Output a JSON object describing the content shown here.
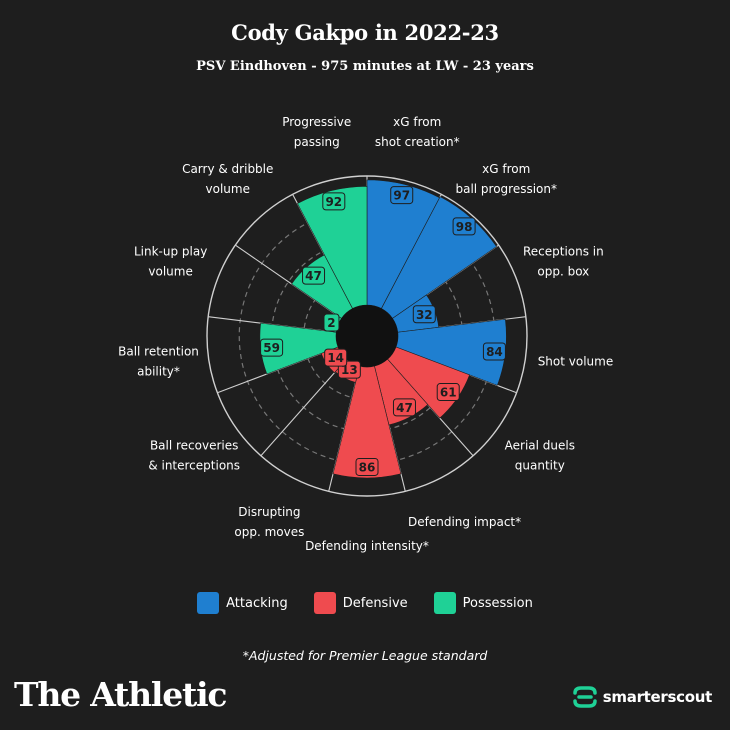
{
  "header": {
    "title": "Cody Gakpo in 2022-23",
    "subtitle": "PSV Eindhoven - 975 minutes at LW - 23 years"
  },
  "colors": {
    "attacking": "#1f7fd0",
    "defensive": "#ef4b4f",
    "possession": "#1fd196",
    "background": "#1e1e1e"
  },
  "chart_data": {
    "type": "polar-bar",
    "title": "Cody Gakpo in 2022-23",
    "subtitle": "PSV Eindhoven - 975 minutes at LW - 23 years",
    "rmax": 100,
    "segments": [
      {
        "label": "xG from shot creation*",
        "lines": [
          "xG from",
          "shot creation*"
        ],
        "value": 97,
        "category": "attacking"
      },
      {
        "label": "xG from ball progression*",
        "lines": [
          "xG from",
          "ball progression*"
        ],
        "value": 98,
        "category": "attacking"
      },
      {
        "label": "Receptions in opp. box",
        "lines": [
          "Receptions in",
          "opp. box"
        ],
        "value": 32,
        "category": "attacking"
      },
      {
        "label": "Shot volume",
        "lines": [
          "Shot volume"
        ],
        "value": 84,
        "category": "attacking"
      },
      {
        "label": "Aerial duels quantity",
        "lines": [
          "Aerial duels",
          "quantity"
        ],
        "value": 61,
        "category": "defensive"
      },
      {
        "label": "Defending impact*",
        "lines": [
          "Defending impact*"
        ],
        "value": 47,
        "category": "defensive"
      },
      {
        "label": "Defending intensity*",
        "lines": [
          "Defending intensity*"
        ],
        "value": 86,
        "category": "defensive"
      },
      {
        "label": "Disrupting opp. moves",
        "lines": [
          "Disrupting",
          "opp. moves"
        ],
        "value": 13,
        "category": "defensive"
      },
      {
        "label": "Ball recoveries & interceptions",
        "lines": [
          "Ball recoveries",
          "& interceptions"
        ],
        "value": 14,
        "category": "defensive"
      },
      {
        "label": "Ball retention ability*",
        "lines": [
          "Ball retention",
          "ability*"
        ],
        "value": 59,
        "category": "possession"
      },
      {
        "label": "Link-up play volume",
        "lines": [
          "Link-up play",
          "volume"
        ],
        "value": 2,
        "category": "possession"
      },
      {
        "label": "Carry & dribble volume",
        "lines": [
          "Carry & dribble",
          "volume"
        ],
        "value": 47,
        "category": "possession"
      },
      {
        "label": "Progressive passing",
        "lines": [
          "Progressive",
          "passing"
        ],
        "value": 92,
        "category": "possession"
      }
    ]
  },
  "legend": [
    {
      "label": "Attacking",
      "color": "#1f7fd0"
    },
    {
      "label": "Defensive",
      "color": "#ef4b4f"
    },
    {
      "label": "Possession",
      "color": "#1fd196"
    }
  ],
  "footnote": "*Adjusted for Premier League standard",
  "brand": "The Athletic",
  "scout_brand": "smarterscout"
}
